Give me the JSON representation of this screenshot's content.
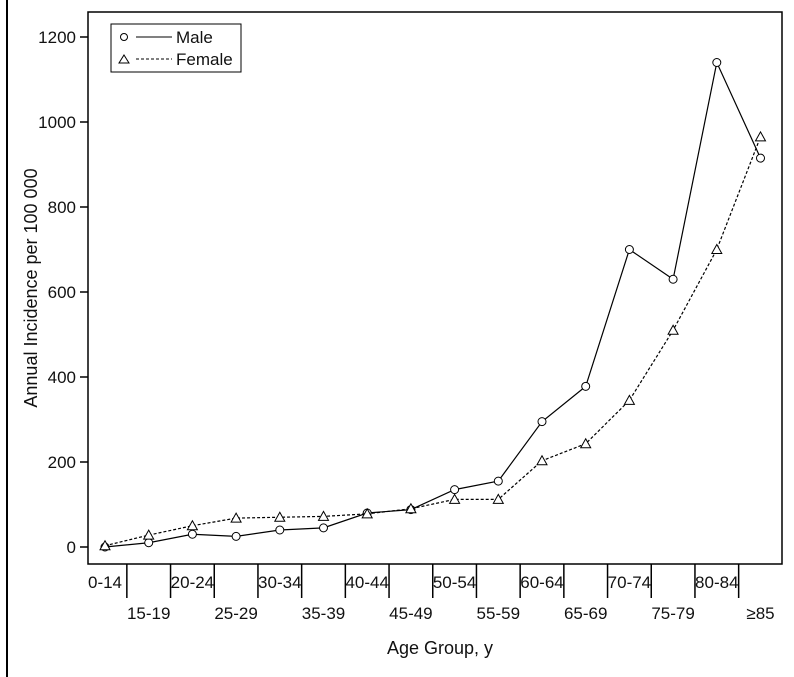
{
  "chart_data": {
    "type": "line",
    "xlabel": "Age Group, y",
    "ylabel": "Annual Incidence per 100 000",
    "ylim": [
      0,
      1200
    ],
    "yticks": [
      0,
      200,
      400,
      600,
      800,
      1000,
      1200
    ],
    "categories": [
      "0-14",
      "15-19",
      "20-24",
      "25-29",
      "30-34",
      "35-39",
      "40-44",
      "45-49",
      "50-54",
      "55-59",
      "60-64",
      "65-69",
      "70-74",
      "75-79",
      "80-84",
      "≥85"
    ],
    "grid": false,
    "legend_position": "top-left",
    "series": [
      {
        "name": "Male",
        "marker": "circle",
        "line_style": "solid",
        "values": [
          0,
          10,
          30,
          25,
          40,
          45,
          80,
          88,
          135,
          155,
          295,
          378,
          700,
          630,
          1140,
          915
        ]
      },
      {
        "name": "Female",
        "marker": "triangle",
        "line_style": "dashed",
        "values": [
          3,
          28,
          50,
          68,
          70,
          72,
          78,
          90,
          112,
          112,
          203,
          243,
          345,
          510,
          700,
          965
        ]
      }
    ]
  }
}
